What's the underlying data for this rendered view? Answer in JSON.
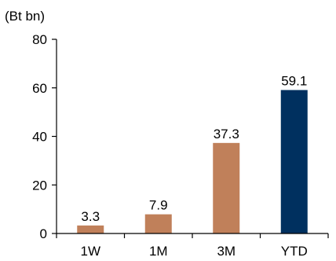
{
  "chart_data": {
    "type": "bar",
    "title": "",
    "unit_label": "(Bt bn)",
    "xlabel": "",
    "ylabel": "",
    "categories": [
      "1W",
      "1M",
      "3M",
      "YTD"
    ],
    "values": [
      3.3,
      7.9,
      37.3,
      59.1
    ],
    "data_labels": [
      "3.3",
      "7.9",
      "37.3",
      "59.1"
    ],
    "ylim": [
      0,
      80
    ],
    "yticks": [
      0,
      20,
      40,
      60,
      80
    ],
    "ytick_labels": [
      "0",
      "20",
      "40",
      "60",
      "80"
    ],
    "grid": false,
    "legend": "none",
    "bar_colors": [
      "#c0805a",
      "#c0805a",
      "#c0805a",
      "#00305f"
    ]
  }
}
